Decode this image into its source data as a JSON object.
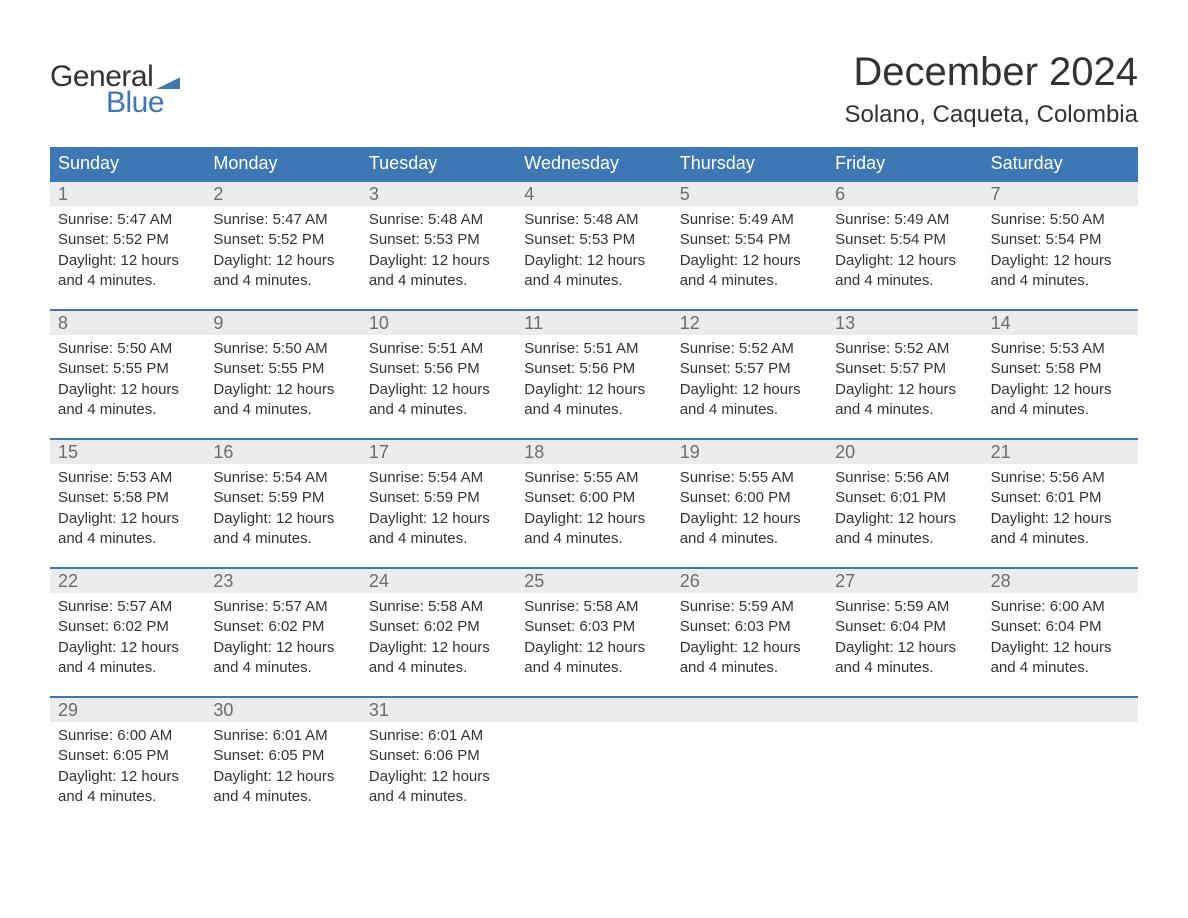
{
  "brand": {
    "part1": "General",
    "part2": "Blue"
  },
  "title": "December 2024",
  "location": "Solano, Caqueta, Colombia",
  "colors": {
    "accent": "#3d78b5",
    "header_text": "#ffffff",
    "daynum_bg": "#ececec",
    "daynum_text": "#6d6d6d",
    "body_text": "#333333",
    "background": "#ffffff"
  },
  "weekdays": [
    "Sunday",
    "Monday",
    "Tuesday",
    "Wednesday",
    "Thursday",
    "Friday",
    "Saturday"
  ],
  "layout": {
    "columns": 7,
    "rows": 5,
    "weekday_font_size_pt": 14,
    "daynum_font_size_pt": 14,
    "detail_font_size_pt": 11,
    "title_font_size_pt": 30,
    "location_font_size_pt": 18
  },
  "weeks": [
    [
      {
        "day": "1",
        "sunrise": "Sunrise: 5:47 AM",
        "sunset": "Sunset: 5:52 PM",
        "daylight1": "Daylight: 12 hours",
        "daylight2": "and 4 minutes."
      },
      {
        "day": "2",
        "sunrise": "Sunrise: 5:47 AM",
        "sunset": "Sunset: 5:52 PM",
        "daylight1": "Daylight: 12 hours",
        "daylight2": "and 4 minutes."
      },
      {
        "day": "3",
        "sunrise": "Sunrise: 5:48 AM",
        "sunset": "Sunset: 5:53 PM",
        "daylight1": "Daylight: 12 hours",
        "daylight2": "and 4 minutes."
      },
      {
        "day": "4",
        "sunrise": "Sunrise: 5:48 AM",
        "sunset": "Sunset: 5:53 PM",
        "daylight1": "Daylight: 12 hours",
        "daylight2": "and 4 minutes."
      },
      {
        "day": "5",
        "sunrise": "Sunrise: 5:49 AM",
        "sunset": "Sunset: 5:54 PM",
        "daylight1": "Daylight: 12 hours",
        "daylight2": "and 4 minutes."
      },
      {
        "day": "6",
        "sunrise": "Sunrise: 5:49 AM",
        "sunset": "Sunset: 5:54 PM",
        "daylight1": "Daylight: 12 hours",
        "daylight2": "and 4 minutes."
      },
      {
        "day": "7",
        "sunrise": "Sunrise: 5:50 AM",
        "sunset": "Sunset: 5:54 PM",
        "daylight1": "Daylight: 12 hours",
        "daylight2": "and 4 minutes."
      }
    ],
    [
      {
        "day": "8",
        "sunrise": "Sunrise: 5:50 AM",
        "sunset": "Sunset: 5:55 PM",
        "daylight1": "Daylight: 12 hours",
        "daylight2": "and 4 minutes."
      },
      {
        "day": "9",
        "sunrise": "Sunrise: 5:50 AM",
        "sunset": "Sunset: 5:55 PM",
        "daylight1": "Daylight: 12 hours",
        "daylight2": "and 4 minutes."
      },
      {
        "day": "10",
        "sunrise": "Sunrise: 5:51 AM",
        "sunset": "Sunset: 5:56 PM",
        "daylight1": "Daylight: 12 hours",
        "daylight2": "and 4 minutes."
      },
      {
        "day": "11",
        "sunrise": "Sunrise: 5:51 AM",
        "sunset": "Sunset: 5:56 PM",
        "daylight1": "Daylight: 12 hours",
        "daylight2": "and 4 minutes."
      },
      {
        "day": "12",
        "sunrise": "Sunrise: 5:52 AM",
        "sunset": "Sunset: 5:57 PM",
        "daylight1": "Daylight: 12 hours",
        "daylight2": "and 4 minutes."
      },
      {
        "day": "13",
        "sunrise": "Sunrise: 5:52 AM",
        "sunset": "Sunset: 5:57 PM",
        "daylight1": "Daylight: 12 hours",
        "daylight2": "and 4 minutes."
      },
      {
        "day": "14",
        "sunrise": "Sunrise: 5:53 AM",
        "sunset": "Sunset: 5:58 PM",
        "daylight1": "Daylight: 12 hours",
        "daylight2": "and 4 minutes."
      }
    ],
    [
      {
        "day": "15",
        "sunrise": "Sunrise: 5:53 AM",
        "sunset": "Sunset: 5:58 PM",
        "daylight1": "Daylight: 12 hours",
        "daylight2": "and 4 minutes."
      },
      {
        "day": "16",
        "sunrise": "Sunrise: 5:54 AM",
        "sunset": "Sunset: 5:59 PM",
        "daylight1": "Daylight: 12 hours",
        "daylight2": "and 4 minutes."
      },
      {
        "day": "17",
        "sunrise": "Sunrise: 5:54 AM",
        "sunset": "Sunset: 5:59 PM",
        "daylight1": "Daylight: 12 hours",
        "daylight2": "and 4 minutes."
      },
      {
        "day": "18",
        "sunrise": "Sunrise: 5:55 AM",
        "sunset": "Sunset: 6:00 PM",
        "daylight1": "Daylight: 12 hours",
        "daylight2": "and 4 minutes."
      },
      {
        "day": "19",
        "sunrise": "Sunrise: 5:55 AM",
        "sunset": "Sunset: 6:00 PM",
        "daylight1": "Daylight: 12 hours",
        "daylight2": "and 4 minutes."
      },
      {
        "day": "20",
        "sunrise": "Sunrise: 5:56 AM",
        "sunset": "Sunset: 6:01 PM",
        "daylight1": "Daylight: 12 hours",
        "daylight2": "and 4 minutes."
      },
      {
        "day": "21",
        "sunrise": "Sunrise: 5:56 AM",
        "sunset": "Sunset: 6:01 PM",
        "daylight1": "Daylight: 12 hours",
        "daylight2": "and 4 minutes."
      }
    ],
    [
      {
        "day": "22",
        "sunrise": "Sunrise: 5:57 AM",
        "sunset": "Sunset: 6:02 PM",
        "daylight1": "Daylight: 12 hours",
        "daylight2": "and 4 minutes."
      },
      {
        "day": "23",
        "sunrise": "Sunrise: 5:57 AM",
        "sunset": "Sunset: 6:02 PM",
        "daylight1": "Daylight: 12 hours",
        "daylight2": "and 4 minutes."
      },
      {
        "day": "24",
        "sunrise": "Sunrise: 5:58 AM",
        "sunset": "Sunset: 6:02 PM",
        "daylight1": "Daylight: 12 hours",
        "daylight2": "and 4 minutes."
      },
      {
        "day": "25",
        "sunrise": "Sunrise: 5:58 AM",
        "sunset": "Sunset: 6:03 PM",
        "daylight1": "Daylight: 12 hours",
        "daylight2": "and 4 minutes."
      },
      {
        "day": "26",
        "sunrise": "Sunrise: 5:59 AM",
        "sunset": "Sunset: 6:03 PM",
        "daylight1": "Daylight: 12 hours",
        "daylight2": "and 4 minutes."
      },
      {
        "day": "27",
        "sunrise": "Sunrise: 5:59 AM",
        "sunset": "Sunset: 6:04 PM",
        "daylight1": "Daylight: 12 hours",
        "daylight2": "and 4 minutes."
      },
      {
        "day": "28",
        "sunrise": "Sunrise: 6:00 AM",
        "sunset": "Sunset: 6:04 PM",
        "daylight1": "Daylight: 12 hours",
        "daylight2": "and 4 minutes."
      }
    ],
    [
      {
        "day": "29",
        "sunrise": "Sunrise: 6:00 AM",
        "sunset": "Sunset: 6:05 PM",
        "daylight1": "Daylight: 12 hours",
        "daylight2": "and 4 minutes."
      },
      {
        "day": "30",
        "sunrise": "Sunrise: 6:01 AM",
        "sunset": "Sunset: 6:05 PM",
        "daylight1": "Daylight: 12 hours",
        "daylight2": "and 4 minutes."
      },
      {
        "day": "31",
        "sunrise": "Sunrise: 6:01 AM",
        "sunset": "Sunset: 6:06 PM",
        "daylight1": "Daylight: 12 hours",
        "daylight2": "and 4 minutes."
      },
      {
        "day": "",
        "sunrise": "",
        "sunset": "",
        "daylight1": "",
        "daylight2": ""
      },
      {
        "day": "",
        "sunrise": "",
        "sunset": "",
        "daylight1": "",
        "daylight2": ""
      },
      {
        "day": "",
        "sunrise": "",
        "sunset": "",
        "daylight1": "",
        "daylight2": ""
      },
      {
        "day": "",
        "sunrise": "",
        "sunset": "",
        "daylight1": "",
        "daylight2": ""
      }
    ]
  ]
}
